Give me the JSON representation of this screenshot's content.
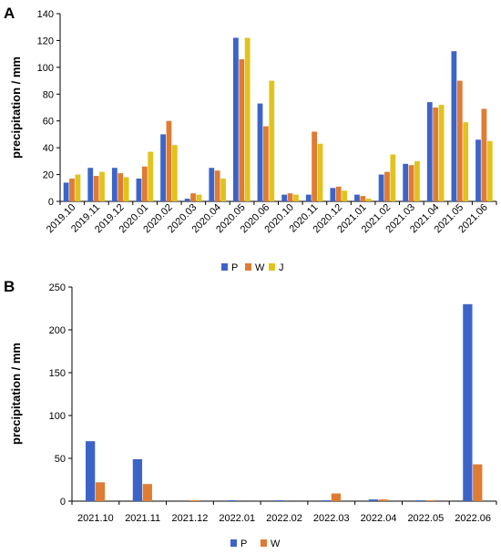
{
  "chart_data": [
    {
      "panel": "A",
      "type": "bar",
      "ylabel": "precipitation / mm",
      "ylim": [
        0,
        140
      ],
      "yticks": [
        0,
        20,
        40,
        60,
        80,
        100,
        120,
        140
      ],
      "categories": [
        "2019.10",
        "2019.11",
        "2019.12",
        "2020.01",
        "2020.02",
        "2020.03",
        "2020.04",
        "2020.05",
        "2020.06",
        "2020.10",
        "2020.11",
        "2020.12",
        "2021.01",
        "2021.02",
        "2021.03",
        "2021.04",
        "2021.05",
        "2021.06"
      ],
      "series": [
        {
          "name": "P",
          "color": "#3c64c8",
          "values": [
            14,
            25,
            25,
            17,
            50,
            2,
            25,
            122,
            73,
            5,
            5,
            10,
            5,
            20,
            28,
            74,
            112,
            46
          ]
        },
        {
          "name": "W",
          "color": "#e07b33",
          "values": [
            17,
            19,
            21,
            26,
            60,
            6,
            23,
            106,
            56,
            6,
            52,
            11,
            4,
            22,
            27,
            70,
            90,
            69
          ]
        },
        {
          "name": "J",
          "color": "#e2c21c",
          "values": [
            20,
            22,
            18,
            37,
            42,
            5,
            17,
            122,
            90,
            5,
            43,
            8,
            2,
            35,
            30,
            72,
            59,
            45
          ]
        }
      ],
      "legend_position": "bottom-right",
      "grid": false
    },
    {
      "panel": "B",
      "type": "bar",
      "ylabel": "precipitation / mm",
      "ylim": [
        0,
        250
      ],
      "yticks": [
        0,
        50,
        100,
        150,
        200,
        250
      ],
      "categories": [
        "2021.10",
        "2021.11",
        "2021.12",
        "2022.01",
        "2022.02",
        "2022.03",
        "2022.04",
        "2022.05",
        "2022.06"
      ],
      "series": [
        {
          "name": "P",
          "color": "#3c64c8",
          "values": [
            70,
            49,
            0,
            1,
            1,
            1,
            2,
            1,
            230
          ]
        },
        {
          "name": "W",
          "color": "#e07b33",
          "values": [
            22,
            20,
            1,
            0,
            0,
            9,
            2,
            1,
            43
          ]
        }
      ],
      "legend_position": "bottom-center",
      "grid": false
    }
  ]
}
